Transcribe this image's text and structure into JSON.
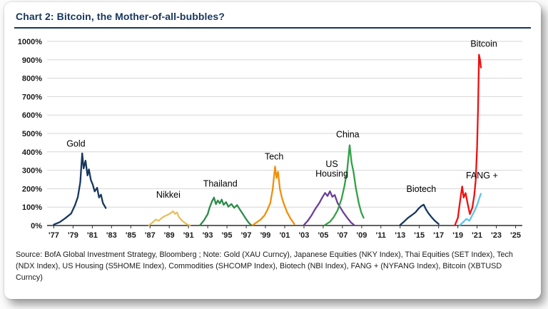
{
  "header": {
    "title": "Chart 2:  Bitcoin, the Mother-of-all-bubbles?"
  },
  "footer": {
    "source": "Source:  BofA Global Investment Strategy, Bloomberg ; Note: Gold (XAU Curncy), Japanese Equities (NKY Index), Thai Equities (SET Index), Tech (NDX Index), US Housing (S5HOME Index), Commodities (SHCOMP Index), Biotech (NBI Index), FANG + (NYFANG Index), Bitcoin (XBTUSD Curncy)"
  },
  "chart_data": {
    "type": "line",
    "title": "Chart 2: Bitcoin, the Mother-of-all-bubbles?",
    "xlabel": "",
    "ylabel": "",
    "xlim": [
      1976.3,
      2025.7
    ],
    "ylim": [
      0,
      1000
    ],
    "grid": "horizontal",
    "legend": "inline-labels",
    "y_ticks": [
      0,
      100,
      200,
      300,
      400,
      500,
      600,
      700,
      800,
      900,
      1000
    ],
    "x_ticks": [
      {
        "x": 1977,
        "label": "'77"
      },
      {
        "x": 1979,
        "label": "'79"
      },
      {
        "x": 1981,
        "label": "'81"
      },
      {
        "x": 1983,
        "label": "'83"
      },
      {
        "x": 1985,
        "label": "'85"
      },
      {
        "x": 1987,
        "label": "'87"
      },
      {
        "x": 1989,
        "label": "'89"
      },
      {
        "x": 1991,
        "label": "'91"
      },
      {
        "x": 1993,
        "label": "'93"
      },
      {
        "x": 1995,
        "label": "'95"
      },
      {
        "x": 1997,
        "label": "'97"
      },
      {
        "x": 1999,
        "label": "'99"
      },
      {
        "x": 2001,
        "label": "'01"
      },
      {
        "x": 2003,
        "label": "'03"
      },
      {
        "x": 2005,
        "label": "'05"
      },
      {
        "x": 2007,
        "label": "'07"
      },
      {
        "x": 2009,
        "label": "'09"
      },
      {
        "x": 2011,
        "label": "'11"
      },
      {
        "x": 2013,
        "label": "'13"
      },
      {
        "x": 2015,
        "label": "'15"
      },
      {
        "x": 2017,
        "label": "'17"
      },
      {
        "x": 2019,
        "label": "'19"
      },
      {
        "x": 2021,
        "label": "'21"
      },
      {
        "x": 2023,
        "label": "'23"
      },
      {
        "x": 2025,
        "label": "'25"
      }
    ],
    "series": [
      {
        "id": "gold",
        "name": "Gold",
        "color": "#17375e",
        "label_lines": [
          "Gold"
        ],
        "label_pos": [
          1979.3,
          428
        ],
        "points": [
          [
            1977,
            5
          ],
          [
            1977.6,
            18
          ],
          [
            1978.2,
            40
          ],
          [
            1978.8,
            65
          ],
          [
            1979.2,
            110
          ],
          [
            1979.5,
            155
          ],
          [
            1979.75,
            235
          ],
          [
            1979.95,
            392
          ],
          [
            1980.1,
            310
          ],
          [
            1980.3,
            352
          ],
          [
            1980.5,
            272
          ],
          [
            1980.65,
            305
          ],
          [
            1980.85,
            248
          ],
          [
            1981.05,
            222
          ],
          [
            1981.25,
            185
          ],
          [
            1981.5,
            205
          ],
          [
            1981.7,
            152
          ],
          [
            1981.9,
            168
          ],
          [
            1982.1,
            122
          ],
          [
            1982.4,
            95
          ]
        ]
      },
      {
        "id": "nikkei",
        "name": "Nikkei",
        "color": "#e7c05c",
        "label_lines": [
          "Nikkei"
        ],
        "label_pos": [
          1988.9,
          152
        ],
        "points": [
          [
            1986.9,
            2
          ],
          [
            1987.3,
            18
          ],
          [
            1987.6,
            32
          ],
          [
            1987.9,
            26
          ],
          [
            1988.2,
            40
          ],
          [
            1988.5,
            50
          ],
          [
            1988.8,
            57
          ],
          [
            1989.1,
            66
          ],
          [
            1989.4,
            77
          ],
          [
            1989.6,
            63
          ],
          [
            1989.8,
            71
          ],
          [
            1990,
            46
          ],
          [
            1990.3,
            28
          ],
          [
            1990.6,
            15
          ],
          [
            1990.9,
            5
          ],
          [
            1991.15,
            1
          ]
        ]
      },
      {
        "id": "thailand",
        "name": "Thailand",
        "color": "#2e8b4a",
        "label_lines": [
          "Thailand"
        ],
        "label_pos": [
          1994.3,
          212
        ],
        "points": [
          [
            1992.2,
            2
          ],
          [
            1992.6,
            28
          ],
          [
            1993,
            62
          ],
          [
            1993.2,
            98
          ],
          [
            1993.45,
            132
          ],
          [
            1993.65,
            152
          ],
          [
            1993.85,
            116
          ],
          [
            1994.05,
            136
          ],
          [
            1994.25,
            120
          ],
          [
            1994.45,
            141
          ],
          [
            1994.65,
            112
          ],
          [
            1994.9,
            127
          ],
          [
            1995.15,
            102
          ],
          [
            1995.45,
            117
          ],
          [
            1995.75,
            96
          ],
          [
            1996.05,
            111
          ],
          [
            1996.35,
            86
          ],
          [
            1996.65,
            62
          ],
          [
            1996.95,
            38
          ],
          [
            1997.25,
            16
          ],
          [
            1997.5,
            3
          ]
        ]
      },
      {
        "id": "tech",
        "name": "Tech",
        "color": "#f0900a",
        "label_lines": [
          "Tech"
        ],
        "label_pos": [
          1999.9,
          358
        ],
        "points": [
          [
            1997.7,
            3
          ],
          [
            1998.1,
            18
          ],
          [
            1998.5,
            32
          ],
          [
            1998.9,
            55
          ],
          [
            1999.2,
            85
          ],
          [
            1999.5,
            122
          ],
          [
            1999.75,
            195
          ],
          [
            2000,
            320
          ],
          [
            2000.15,
            258
          ],
          [
            2000.3,
            292
          ],
          [
            2000.5,
            198
          ],
          [
            2000.7,
            152
          ],
          [
            2000.95,
            112
          ],
          [
            2001.25,
            72
          ],
          [
            2001.6,
            38
          ],
          [
            2002,
            8
          ]
        ]
      },
      {
        "id": "us-housing",
        "name": "US Housing",
        "color": "#6d3f96",
        "label_lines": [
          "US",
          "Housing"
        ],
        "label_pos": [
          2005.9,
          318
        ],
        "points": [
          [
            2003,
            3
          ],
          [
            2003.4,
            26
          ],
          [
            2003.8,
            56
          ],
          [
            2004.2,
            92
          ],
          [
            2004.6,
            122
          ],
          [
            2004.9,
            152
          ],
          [
            2005.2,
            177
          ],
          [
            2005.45,
            160
          ],
          [
            2005.7,
            186
          ],
          [
            2005.95,
            156
          ],
          [
            2006.2,
            166
          ],
          [
            2006.5,
            122
          ],
          [
            2006.8,
            96
          ],
          [
            2007.1,
            71
          ],
          [
            2007.5,
            42
          ],
          [
            2007.9,
            16
          ],
          [
            2008.2,
            3
          ]
        ]
      },
      {
        "id": "china",
        "name": "China",
        "color": "#33a047",
        "label_lines": [
          "China"
        ],
        "label_pos": [
          2007.55,
          478
        ],
        "points": [
          [
            2005.2,
            3
          ],
          [
            2005.7,
            20
          ],
          [
            2006.1,
            46
          ],
          [
            2006.5,
            82
          ],
          [
            2006.9,
            142
          ],
          [
            2007.2,
            212
          ],
          [
            2007.5,
            302
          ],
          [
            2007.75,
            436
          ],
          [
            2007.95,
            342
          ],
          [
            2008.15,
            292
          ],
          [
            2008.4,
            202
          ],
          [
            2008.7,
            122
          ],
          [
            2008.95,
            72
          ],
          [
            2009.2,
            42
          ]
        ]
      },
      {
        "id": "biotech",
        "name": "Biotech",
        "color": "#17375e",
        "label_lines": [
          "Biotech"
        ],
        "label_pos": [
          2015.2,
          182
        ],
        "points": [
          [
            2013,
            3
          ],
          [
            2013.4,
            21
          ],
          [
            2013.8,
            41
          ],
          [
            2014.2,
            56
          ],
          [
            2014.6,
            72
          ],
          [
            2014.9,
            91
          ],
          [
            2015.2,
            106
          ],
          [
            2015.45,
            113
          ],
          [
            2015.7,
            86
          ],
          [
            2015.95,
            66
          ],
          [
            2016.25,
            46
          ],
          [
            2016.6,
            26
          ],
          [
            2017,
            8
          ]
        ]
      },
      {
        "id": "fang-plus",
        "name": "FANG +",
        "color": "#5fc3ea",
        "label_lines": [
          "FANG +"
        ],
        "label_pos": [
          2021.5,
          255
        ],
        "points": [
          [
            2019.2,
            2
          ],
          [
            2019.6,
            21
          ],
          [
            2019.9,
            36
          ],
          [
            2020.2,
            26
          ],
          [
            2020.5,
            56
          ],
          [
            2020.8,
            86
          ],
          [
            2021.05,
            118
          ],
          [
            2021.25,
            152
          ],
          [
            2021.4,
            172
          ]
        ]
      },
      {
        "id": "bitcoin",
        "name": "Bitcoin",
        "color": "#ef1010",
        "label_lines": [
          "Bitcoin"
        ],
        "label_pos": [
          2021.7,
          970
        ],
        "points": [
          [
            2018.7,
            2
          ],
          [
            2019,
            42
          ],
          [
            2019.2,
            122
          ],
          [
            2019.45,
            212
          ],
          [
            2019.6,
            152
          ],
          [
            2019.8,
            176
          ],
          [
            2020,
            122
          ],
          [
            2020.25,
            62
          ],
          [
            2020.5,
            96
          ],
          [
            2020.7,
            162
          ],
          [
            2020.85,
            242
          ],
          [
            2021,
            422
          ],
          [
            2021.1,
            642
          ],
          [
            2021.2,
            928
          ],
          [
            2021.3,
            902
          ],
          [
            2021.4,
            858
          ]
        ]
      }
    ]
  }
}
